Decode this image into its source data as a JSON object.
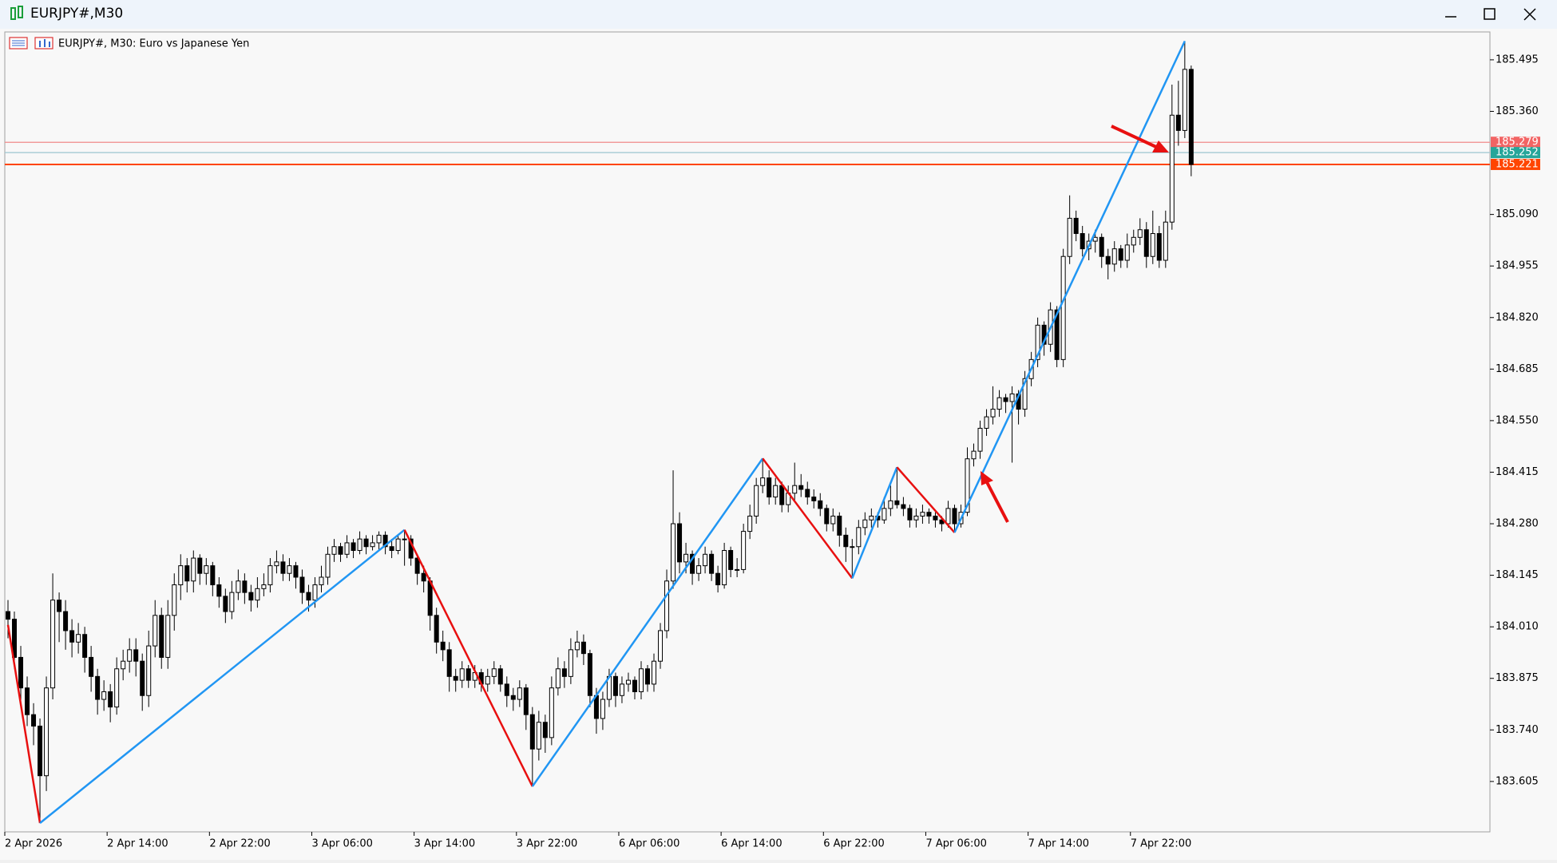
{
  "window_title": "EURJPY#,M30",
  "chart_data": {
    "type": "candlestick",
    "title": "EURJPY#, M30:  Euro vs Japanese Yen",
    "bull_color": "#ffffff",
    "bear_color": "#000000",
    "wick_color": "#000000",
    "ylim": [
      183.473,
      185.568
    ],
    "yticks": [
      185.495,
      {
        "value": 185.36,
        "label": "185.360"
      },
      {
        "value": 185.09,
        "label": "185.090"
      },
      184.955,
      {
        "value": 184.82,
        "label": "184.820"
      },
      184.685,
      {
        "value": 184.55,
        "label": "184.550"
      },
      184.415,
      {
        "value": 184.28,
        "label": "184.280"
      },
      184.145,
      {
        "value": 184.01,
        "label": "184.010"
      },
      183.875,
      {
        "value": 183.74,
        "label": "183.740"
      },
      183.605
    ],
    "xticks": [
      {
        "value": 0,
        "label": "2 Apr 2026"
      },
      {
        "value": 16,
        "label": "2 Apr 14:00"
      },
      {
        "value": 32,
        "label": "2 Apr 22:00"
      },
      {
        "value": 48,
        "label": "3 Apr 06:00"
      },
      {
        "value": 64,
        "label": "3 Apr 14:00"
      },
      {
        "value": 80,
        "label": "3 Apr 22:00"
      },
      {
        "value": 96,
        "label": "6 Apr 06:00"
      },
      {
        "value": 112,
        "label": "6 Apr 14:00"
      },
      {
        "value": 128,
        "label": "6 Apr 22:00"
      },
      {
        "value": 144,
        "label": "7 Apr 06:00"
      },
      {
        "value": 160,
        "label": "7 Apr 14:00"
      },
      {
        "value": 176,
        "label": "7 Apr 22:00"
      }
    ],
    "ohlc": [
      [
        184.05,
        184.08,
        183.98,
        184.03
      ],
      [
        184.03,
        184.05,
        183.9,
        183.93
      ],
      [
        183.93,
        183.96,
        183.8,
        183.85
      ],
      [
        183.85,
        183.88,
        183.75,
        183.78
      ],
      [
        183.78,
        183.81,
        183.7,
        183.75
      ],
      [
        183.75,
        183.77,
        183.496,
        183.62
      ],
      [
        183.62,
        183.88,
        183.58,
        183.85
      ],
      [
        183.85,
        184.15,
        183.82,
        184.08
      ],
      [
        184.08,
        184.1,
        183.97,
        184.05
      ],
      [
        184.05,
        184.08,
        183.95,
        184.0
      ],
      [
        184.0,
        184.03,
        183.93,
        183.97
      ],
      [
        183.97,
        184.02,
        183.94,
        183.99
      ],
      [
        183.99,
        184.01,
        183.89,
        183.93
      ],
      [
        183.93,
        183.96,
        183.84,
        183.88
      ],
      [
        183.88,
        183.9,
        183.78,
        183.82
      ],
      [
        183.82,
        183.87,
        183.79,
        183.84
      ],
      [
        183.84,
        183.86,
        183.76,
        183.8
      ],
      [
        183.8,
        183.93,
        183.78,
        183.9
      ],
      [
        183.9,
        183.95,
        183.87,
        183.92
      ],
      [
        183.92,
        183.98,
        183.89,
        183.95
      ],
      [
        183.95,
        183.98,
        183.88,
        183.92
      ],
      [
        183.92,
        183.94,
        183.79,
        183.83
      ],
      [
        183.83,
        184.0,
        183.8,
        183.96
      ],
      [
        183.96,
        184.08,
        183.93,
        184.04
      ],
      [
        184.04,
        184.06,
        183.9,
        183.93
      ],
      [
        183.93,
        184.08,
        183.9,
        184.04
      ],
      [
        184.04,
        184.15,
        184.0,
        184.12
      ],
      [
        184.12,
        184.2,
        184.08,
        184.17
      ],
      [
        184.17,
        184.19,
        184.1,
        184.13
      ],
      [
        184.13,
        184.21,
        184.1,
        184.19
      ],
      [
        184.19,
        184.2,
        184.12,
        184.15
      ],
      [
        184.15,
        184.19,
        184.12,
        184.17
      ],
      [
        184.17,
        184.18,
        184.09,
        184.12
      ],
      [
        184.12,
        184.14,
        184.06,
        184.09
      ],
      [
        184.09,
        184.11,
        184.02,
        184.05
      ],
      [
        184.05,
        184.13,
        184.03,
        184.1
      ],
      [
        184.1,
        184.16,
        184.08,
        184.13
      ],
      [
        184.13,
        184.15,
        184.07,
        184.1
      ],
      [
        184.1,
        184.12,
        184.05,
        184.08
      ],
      [
        184.08,
        184.14,
        184.06,
        184.11
      ],
      [
        184.11,
        184.15,
        184.09,
        184.12
      ],
      [
        184.12,
        184.19,
        184.1,
        184.17
      ],
      [
        184.17,
        184.21,
        184.15,
        184.18
      ],
      [
        184.18,
        184.2,
        184.13,
        184.15
      ],
      [
        184.15,
        184.19,
        184.13,
        184.17
      ],
      [
        184.17,
        184.18,
        184.11,
        184.14
      ],
      [
        184.14,
        184.16,
        184.07,
        184.1
      ],
      [
        184.1,
        184.12,
        184.05,
        184.08
      ],
      [
        184.08,
        184.14,
        184.06,
        184.12
      ],
      [
        184.12,
        184.17,
        184.1,
        184.14
      ],
      [
        184.14,
        184.22,
        184.12,
        184.2
      ],
      [
        184.2,
        184.24,
        184.18,
        184.22
      ],
      [
        184.22,
        184.23,
        184.18,
        184.2
      ],
      [
        184.2,
        184.25,
        184.19,
        184.23
      ],
      [
        184.23,
        184.24,
        184.19,
        184.21
      ],
      [
        184.21,
        184.26,
        184.2,
        184.24
      ],
      [
        184.24,
        184.25,
        184.2,
        184.22
      ],
      [
        184.22,
        184.25,
        184.21,
        184.23
      ],
      [
        184.23,
        184.26,
        184.21,
        184.25
      ],
      [
        184.25,
        184.26,
        184.2,
        184.22
      ],
      [
        184.22,
        184.24,
        184.19,
        184.21
      ],
      [
        184.21,
        184.25,
        184.2,
        184.24
      ],
      [
        184.24,
        184.264,
        184.17,
        184.24
      ],
      [
        184.24,
        184.25,
        184.17,
        184.19
      ],
      [
        184.19,
        184.2,
        184.12,
        184.15
      ],
      [
        184.15,
        184.17,
        184.1,
        184.13
      ],
      [
        184.13,
        184.14,
        184.0,
        184.04
      ],
      [
        184.04,
        184.06,
        183.94,
        183.97
      ],
      [
        183.97,
        184.0,
        183.92,
        183.95
      ],
      [
        183.95,
        183.97,
        183.84,
        183.88
      ],
      [
        183.88,
        183.9,
        183.84,
        183.87
      ],
      [
        183.87,
        183.92,
        183.85,
        183.9
      ],
      [
        183.9,
        183.91,
        183.85,
        183.87
      ],
      [
        183.87,
        183.91,
        183.85,
        183.89
      ],
      [
        183.89,
        183.9,
        183.84,
        183.86
      ],
      [
        183.86,
        183.9,
        183.84,
        183.88
      ],
      [
        183.88,
        183.92,
        183.86,
        183.9
      ],
      [
        183.9,
        183.91,
        183.84,
        183.86
      ],
      [
        183.86,
        183.88,
        183.8,
        183.83
      ],
      [
        183.83,
        183.85,
        183.79,
        183.82
      ],
      [
        183.82,
        183.87,
        183.8,
        183.85
      ],
      [
        183.85,
        183.86,
        183.74,
        183.78
      ],
      [
        183.78,
        183.8,
        183.592,
        183.69
      ],
      [
        183.69,
        183.79,
        183.66,
        183.76
      ],
      [
        183.76,
        183.78,
        183.68,
        183.72
      ],
      [
        183.72,
        183.88,
        183.7,
        183.85
      ],
      [
        183.85,
        183.93,
        183.83,
        183.9
      ],
      [
        183.9,
        183.92,
        183.85,
        183.88
      ],
      [
        183.88,
        183.98,
        183.86,
        183.95
      ],
      [
        183.95,
        184.0,
        183.93,
        183.97
      ],
      [
        183.97,
        183.99,
        183.91,
        183.94
      ],
      [
        183.94,
        183.95,
        183.8,
        183.83
      ],
      [
        183.83,
        183.85,
        183.73,
        183.77
      ],
      [
        183.77,
        183.84,
        183.74,
        183.82
      ],
      [
        183.82,
        183.9,
        183.8,
        183.88
      ],
      [
        183.88,
        183.89,
        183.8,
        183.83
      ],
      [
        183.83,
        183.88,
        183.81,
        183.86
      ],
      [
        183.86,
        183.89,
        183.84,
        183.87
      ],
      [
        183.87,
        183.88,
        183.82,
        183.84
      ],
      [
        183.84,
        183.92,
        183.82,
        183.9
      ],
      [
        183.9,
        183.91,
        183.84,
        183.86
      ],
      [
        183.86,
        183.94,
        183.84,
        183.92
      ],
      [
        183.92,
        184.02,
        183.9,
        184.0
      ],
      [
        184.0,
        184.16,
        183.98,
        184.13
      ],
      [
        184.13,
        184.42,
        184.11,
        184.28
      ],
      [
        184.28,
        184.31,
        184.15,
        184.18
      ],
      [
        184.18,
        184.23,
        184.15,
        184.2
      ],
      [
        184.2,
        184.21,
        184.12,
        184.15
      ],
      [
        184.15,
        184.19,
        184.13,
        184.17
      ],
      [
        184.17,
        184.22,
        184.15,
        184.2
      ],
      [
        184.2,
        184.21,
        184.13,
        184.15
      ],
      [
        184.15,
        184.17,
        184.1,
        184.12
      ],
      [
        184.12,
        184.23,
        184.11,
        184.21
      ],
      [
        184.21,
        184.22,
        184.14,
        184.16
      ],
      [
        184.16,
        184.19,
        184.14,
        184.16
      ],
      [
        184.16,
        184.28,
        184.15,
        184.26
      ],
      [
        184.26,
        184.33,
        184.24,
        184.3
      ],
      [
        184.3,
        184.4,
        184.28,
        184.38
      ],
      [
        184.38,
        184.451,
        184.36,
        184.4
      ],
      [
        184.4,
        184.42,
        184.33,
        184.35
      ],
      [
        184.35,
        184.4,
        184.33,
        184.38
      ],
      [
        184.38,
        184.39,
        184.31,
        184.33
      ],
      [
        184.33,
        184.38,
        184.31,
        184.36
      ],
      [
        184.36,
        184.44,
        184.34,
        184.38
      ],
      [
        184.38,
        184.41,
        184.35,
        184.37
      ],
      [
        184.37,
        184.39,
        184.33,
        184.35
      ],
      [
        184.35,
        184.37,
        184.32,
        184.34
      ],
      [
        184.34,
        184.36,
        184.3,
        184.32
      ],
      [
        184.32,
        184.33,
        184.26,
        184.28
      ],
      [
        184.28,
        184.32,
        184.26,
        184.3
      ],
      [
        184.3,
        184.31,
        184.22,
        184.25
      ],
      [
        184.25,
        184.27,
        184.18,
        184.22
      ],
      [
        184.22,
        184.24,
        184.137,
        184.22
      ],
      [
        184.22,
        184.29,
        184.2,
        184.27
      ],
      [
        184.27,
        184.31,
        184.25,
        184.29
      ],
      [
        184.29,
        184.32,
        184.27,
        184.3
      ],
      [
        184.3,
        184.31,
        184.27,
        184.29
      ],
      [
        184.29,
        184.35,
        184.28,
        184.32
      ],
      [
        184.32,
        184.38,
        184.3,
        184.34
      ],
      [
        184.34,
        184.428,
        184.32,
        184.33
      ],
      [
        184.33,
        184.35,
        184.3,
        184.32
      ],
      [
        184.32,
        184.33,
        184.27,
        184.29
      ],
      [
        184.29,
        184.32,
        184.27,
        184.3
      ],
      [
        184.3,
        184.33,
        184.28,
        184.31
      ],
      [
        184.31,
        184.32,
        184.28,
        184.3
      ],
      [
        184.3,
        184.31,
        184.27,
        184.29
      ],
      [
        184.29,
        184.3,
        184.26,
        184.28
      ],
      [
        184.28,
        184.34,
        184.27,
        184.32
      ],
      [
        184.32,
        184.33,
        184.257,
        184.28
      ],
      [
        184.28,
        184.33,
        184.27,
        184.31
      ],
      [
        184.31,
        184.48,
        184.3,
        184.45
      ],
      [
        184.45,
        184.49,
        184.43,
        184.47
      ],
      [
        184.47,
        184.55,
        184.45,
        184.53
      ],
      [
        184.53,
        184.58,
        184.51,
        184.56
      ],
      [
        184.56,
        184.64,
        184.54,
        184.58
      ],
      [
        184.58,
        184.63,
        184.56,
        184.61
      ],
      [
        184.61,
        184.62,
        184.57,
        184.6
      ],
      [
        184.6,
        184.64,
        184.44,
        184.62
      ],
      [
        184.62,
        184.63,
        184.54,
        184.58
      ],
      [
        184.58,
        184.68,
        184.56,
        184.66
      ],
      [
        184.66,
        184.73,
        184.64,
        184.71
      ],
      [
        184.71,
        184.82,
        184.69,
        184.8
      ],
      [
        184.8,
        184.81,
        184.72,
        184.75
      ],
      [
        184.75,
        184.86,
        184.73,
        184.84
      ],
      [
        184.84,
        184.85,
        184.69,
        184.71
      ],
      [
        184.71,
        185.0,
        184.69,
        184.98
      ],
      [
        184.98,
        185.14,
        184.96,
        185.08
      ],
      [
        185.08,
        185.1,
        185.02,
        185.04
      ],
      [
        185.04,
        185.06,
        184.98,
        185.0
      ],
      [
        185.0,
        185.04,
        184.97,
        185.02
      ],
      [
        185.02,
        185.05,
        184.99,
        185.03
      ],
      [
        185.03,
        185.04,
        184.95,
        184.98
      ],
      [
        184.98,
        185.0,
        184.92,
        184.96
      ],
      [
        184.96,
        185.02,
        184.94,
        185.0
      ],
      [
        185.0,
        185.01,
        184.95,
        184.97
      ],
      [
        184.97,
        185.04,
        184.95,
        185.01
      ],
      [
        185.01,
        185.05,
        184.99,
        185.03
      ],
      [
        185.03,
        185.08,
        185.01,
        185.05
      ],
      [
        185.05,
        185.07,
        184.95,
        184.98
      ],
      [
        184.98,
        185.1,
        184.96,
        185.04
      ],
      [
        185.04,
        185.06,
        184.95,
        184.97
      ],
      [
        184.97,
        185.1,
        184.95,
        185.07
      ],
      [
        185.07,
        185.43,
        185.05,
        185.35
      ],
      [
        185.35,
        185.44,
        185.27,
        185.31
      ],
      [
        185.31,
        185.544,
        185.29,
        185.47
      ],
      [
        185.47,
        185.48,
        185.19,
        185.221
      ]
    ],
    "zigzag": {
      "up_color": "#2196f3",
      "down_color": "#e81010",
      "x": [
        0,
        5,
        62,
        82,
        118,
        132,
        139,
        148,
        184
      ],
      "values": [
        184.015,
        183.496,
        184.264,
        183.592,
        184.451,
        184.137,
        184.428,
        184.257,
        185.544
      ]
    },
    "levels": [
      {
        "value": 185.279,
        "color": "#f08a8a",
        "label_color": "#f26464"
      },
      {
        "value": 185.252,
        "color": "#9cc6cf",
        "label_color": "#26a69a"
      },
      {
        "value": 185.221,
        "color": "#ff4500",
        "label_color": "#ff4500"
      }
    ]
  }
}
